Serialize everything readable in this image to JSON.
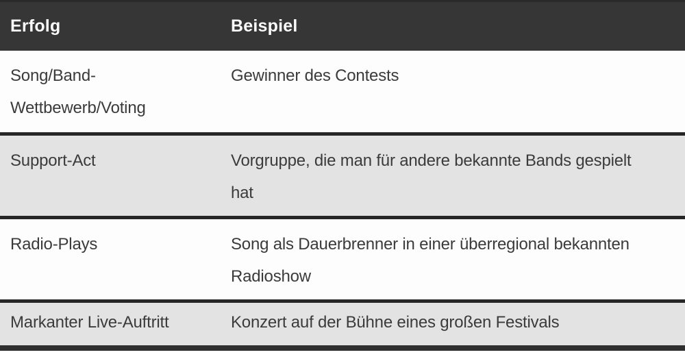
{
  "table": {
    "headers": [
      {
        "id": "erfolg",
        "label": "Erfolg"
      },
      {
        "id": "beispiel",
        "label": "Beispiel"
      }
    ],
    "rows": [
      {
        "erfolg": "Song/Band-Wettbewerb/Voting",
        "beispiel": "Gewinner des Contests"
      },
      {
        "erfolg": "Support-Act",
        "beispiel": "Vorgruppe, die man für andere bekannte Bands gespielt hat"
      },
      {
        "erfolg": "Radio-Plays",
        "beispiel": "Song als Dauerbrenner in einer überregional bekannten Radioshow"
      },
      {
        "erfolg": "Markanter Live-Auftritt",
        "beispiel": "Konzert auf der Bühne eines großen Festivals"
      }
    ],
    "colors": {
      "header_bg": "#363636",
      "header_text": "#fafafa",
      "body_text": "#3b3b3b",
      "row_bg": "#fdfdfd",
      "row_alt_bg": "#e3e3e3",
      "separator": "#262626",
      "bottom_bar": "#2f2f2f"
    }
  }
}
